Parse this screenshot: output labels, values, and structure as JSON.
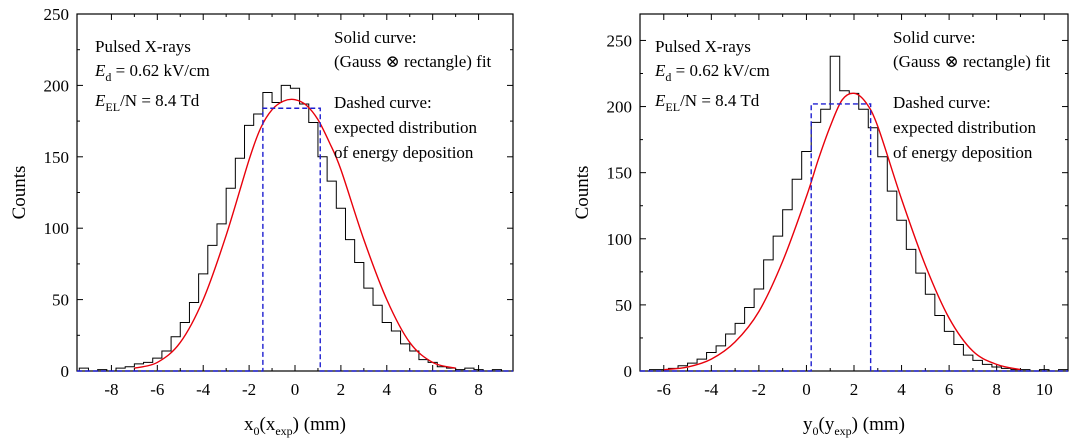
{
  "chart_data": [
    {
      "type": "line",
      "xlabel": "x0(xexp) (mm)",
      "xlabel_parts": {
        "main": "x",
        "sub1": "0",
        "open": "(x",
        "sub2": "exp",
        "close": ") (mm)"
      },
      "ylabel": "Counts",
      "xlim": [
        -9.5,
        9.5
      ],
      "ylim": [
        0,
        250
      ],
      "xticks": [
        -8,
        -6,
        -4,
        -2,
        0,
        2,
        4,
        6,
        8
      ],
      "yticks": [
        0,
        50,
        100,
        150,
        200,
        250
      ],
      "annotations": {
        "left": {
          "line1": "Pulsed X-rays",
          "line2_sym": "E",
          "line2_sub": "d",
          "line2_rest": " = 0.62 kV/cm",
          "line3_sym": "E",
          "line3_sub": "EL",
          "line3_rest": "/N = 8.4 Td"
        },
        "right": {
          "solid1": "Solid curve:",
          "solid2": "(Gauss ⊗ rectangle) fit",
          "dashed1": "Dashed curve:",
          "dashed2": "expected distribution",
          "dashed3": "of energy deposition"
        }
      },
      "series": [
        {
          "kind": "histogram",
          "color": "#000000",
          "x": [
            -9.2,
            -8.8,
            -8.4,
            -8.0,
            -7.6,
            -7.2,
            -6.8,
            -6.4,
            -6.0,
            -5.6,
            -5.2,
            -4.8,
            -4.4,
            -4.0,
            -3.6,
            -3.2,
            -2.8,
            -2.4,
            -2.0,
            -1.6,
            -1.2,
            -0.8,
            -0.4,
            0.0,
            0.4,
            0.8,
            1.2,
            1.6,
            2.0,
            2.4,
            2.8,
            3.2,
            3.6,
            4.0,
            4.4,
            4.8,
            5.2,
            5.6,
            6.0,
            6.4,
            6.8,
            7.2,
            7.6,
            8.0,
            8.4,
            8.8,
            9.2
          ],
          "values": [
            2,
            0,
            1,
            0,
            2,
            3,
            5,
            6,
            9,
            14,
            24,
            34,
            48,
            68,
            88,
            103,
            128,
            149,
            172,
            180,
            195,
            188,
            200,
            198,
            187,
            174,
            150,
            133,
            114,
            92,
            76,
            58,
            46,
            34,
            28,
            19,
            14,
            8,
            6,
            3,
            2,
            1,
            2,
            1,
            0,
            1,
            0
          ]
        },
        {
          "kind": "fit",
          "color": "#e8000b",
          "x": [
            -7,
            -6,
            -5,
            -4,
            -3,
            -2,
            -1.5,
            -1,
            -0.5,
            0,
            0.5,
            1,
            1.5,
            2,
            3,
            4,
            5,
            6,
            7
          ],
          "values": [
            2,
            6,
            20,
            50,
            95,
            148,
            170,
            183,
            189,
            190,
            186,
            176,
            160,
            141,
            92,
            50,
            20,
            6,
            2
          ]
        },
        {
          "kind": "expected",
          "color": "#1f1fd0",
          "dashed": true,
          "x": [
            -9.5,
            -1.4,
            -1.4,
            1.1,
            1.1,
            9.5
          ],
          "values": [
            0,
            0,
            184,
            184,
            0,
            0
          ]
        }
      ]
    },
    {
      "type": "line",
      "xlabel": "y0(yexp) (mm)",
      "xlabel_parts": {
        "main": "y",
        "sub1": "0",
        "open": "(y",
        "sub2": "exp",
        "close": ") (mm)"
      },
      "ylabel": "Counts",
      "xlim": [
        -7,
        11
      ],
      "ylim": [
        0,
        270
      ],
      "xticks": [
        -6,
        -4,
        -2,
        0,
        2,
        4,
        6,
        8,
        10
      ],
      "yticks": [
        0,
        50,
        100,
        150,
        200,
        250
      ],
      "annotations": {
        "left": {
          "line1": "Pulsed X-rays",
          "line2_sym": "E",
          "line2_sub": "d",
          "line2_rest": " = 0.62 kV/cm",
          "line3_sym": "E",
          "line3_sub": "EL",
          "line3_rest": "/N = 8.4 Td"
        },
        "right": {
          "solid1": "Solid curve:",
          "solid2": "(Gauss ⊗ rectangle) fit",
          "dashed1": "Dashed curve:",
          "dashed2": "expected distribution",
          "dashed3": "of energy deposition"
        }
      },
      "series": [
        {
          "kind": "histogram",
          "color": "#000000",
          "x": [
            -6.8,
            -6.4,
            -6.0,
            -5.6,
            -5.2,
            -4.8,
            -4.4,
            -4.0,
            -3.6,
            -3.2,
            -2.8,
            -2.4,
            -2.0,
            -1.6,
            -1.2,
            -0.8,
            -0.4,
            0.0,
            0.4,
            0.8,
            1.2,
            1.6,
            2.0,
            2.4,
            2.8,
            3.2,
            3.6,
            4.0,
            4.4,
            4.8,
            5.2,
            5.6,
            6.0,
            6.4,
            6.8,
            7.2,
            7.6,
            8.0,
            8.4,
            8.8,
            9.2,
            9.6,
            10.0,
            10.4,
            10.8
          ],
          "values": [
            0,
            1,
            1,
            2,
            4,
            6,
            9,
            14,
            19,
            28,
            36,
            48,
            62,
            84,
            102,
            122,
            145,
            166,
            188,
            198,
            238,
            212,
            210,
            198,
            184,
            162,
            136,
            114,
            92,
            74,
            58,
            42,
            30,
            20,
            12,
            8,
            5,
            3,
            2,
            1,
            1,
            0,
            1,
            0,
            1
          ]
        },
        {
          "kind": "fit",
          "color": "#e8000b",
          "x": [
            -6,
            -5,
            -4,
            -3,
            -2,
            -1,
            0,
            0.5,
            1,
            1.5,
            2,
            2.5,
            3,
            4,
            5,
            6,
            7,
            8,
            9
          ],
          "values": [
            1,
            3,
            9,
            22,
            45,
            83,
            132,
            160,
            185,
            205,
            210,
            203,
            185,
            130,
            80,
            40,
            15,
            5,
            1
          ]
        },
        {
          "kind": "expected",
          "color": "#1f1fd0",
          "dashed": true,
          "x": [
            -7,
            0.2,
            0.2,
            2.7,
            2.7,
            11
          ],
          "values": [
            0,
            0,
            202,
            202,
            0,
            0
          ]
        }
      ]
    }
  ]
}
